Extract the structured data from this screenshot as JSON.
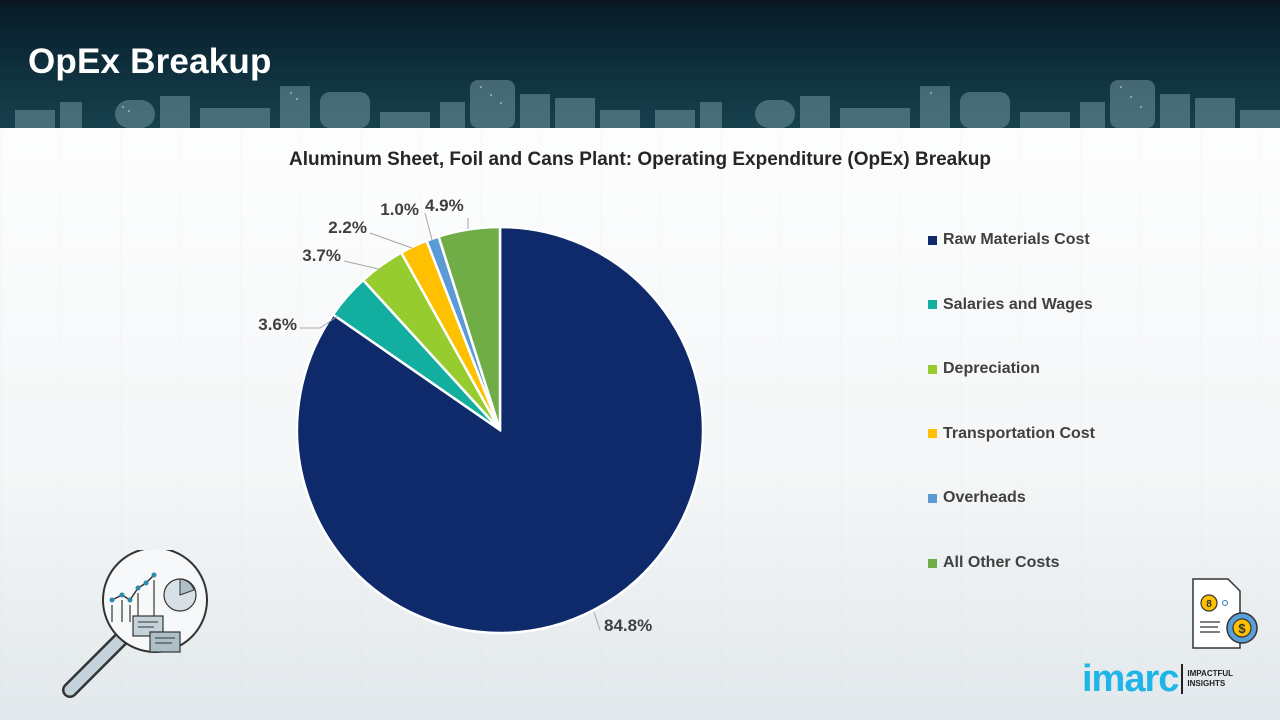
{
  "header": {
    "title": "OpEx Breakup"
  },
  "chart_data": {
    "type": "pie",
    "title": "Aluminum Sheet, Foil and Cans Plant: Operating Expenditure (OpEx) Breakup",
    "categories": [
      "Raw Materials Cost",
      "Salaries and Wages",
      "Depreciation",
      "Transportation Cost",
      "Overheads",
      "All Other Costs"
    ],
    "values": [
      84.8,
      3.6,
      3.7,
      2.2,
      1.0,
      4.9
    ],
    "labels": [
      "84.8%",
      "3.6%",
      "3.7%",
      "2.2%",
      "1.0%",
      "4.9%"
    ],
    "colors": [
      "#0f2a6b",
      "#12aea0",
      "#96cc2d",
      "#ffc000",
      "#5b9bd5",
      "#70ad47"
    ],
    "unit": "%",
    "start_angle": "12 o'clock",
    "direction": "clockwise",
    "legend_position": "right"
  },
  "legend": {
    "items": [
      {
        "label": "Raw Materials Cost",
        "color": "#0f2a6b"
      },
      {
        "label": "Salaries and Wages",
        "color": "#12aea0"
      },
      {
        "label": "Depreciation",
        "color": "#96cc2d"
      },
      {
        "label": "Transportation Cost",
        "color": "#ffc000"
      },
      {
        "label": "Overheads",
        "color": "#5b9bd5"
      },
      {
        "label": "All Other Costs",
        "color": "#70ad47"
      }
    ]
  },
  "icons": {
    "magnifier": "magnifier-analytics-icon",
    "document": "document-cost-icon"
  },
  "logo": {
    "word": "imarc",
    "tagline_line1": "IMPACTFUL",
    "tagline_line2": "INSIGHTS",
    "color": "#1fb5e8"
  }
}
